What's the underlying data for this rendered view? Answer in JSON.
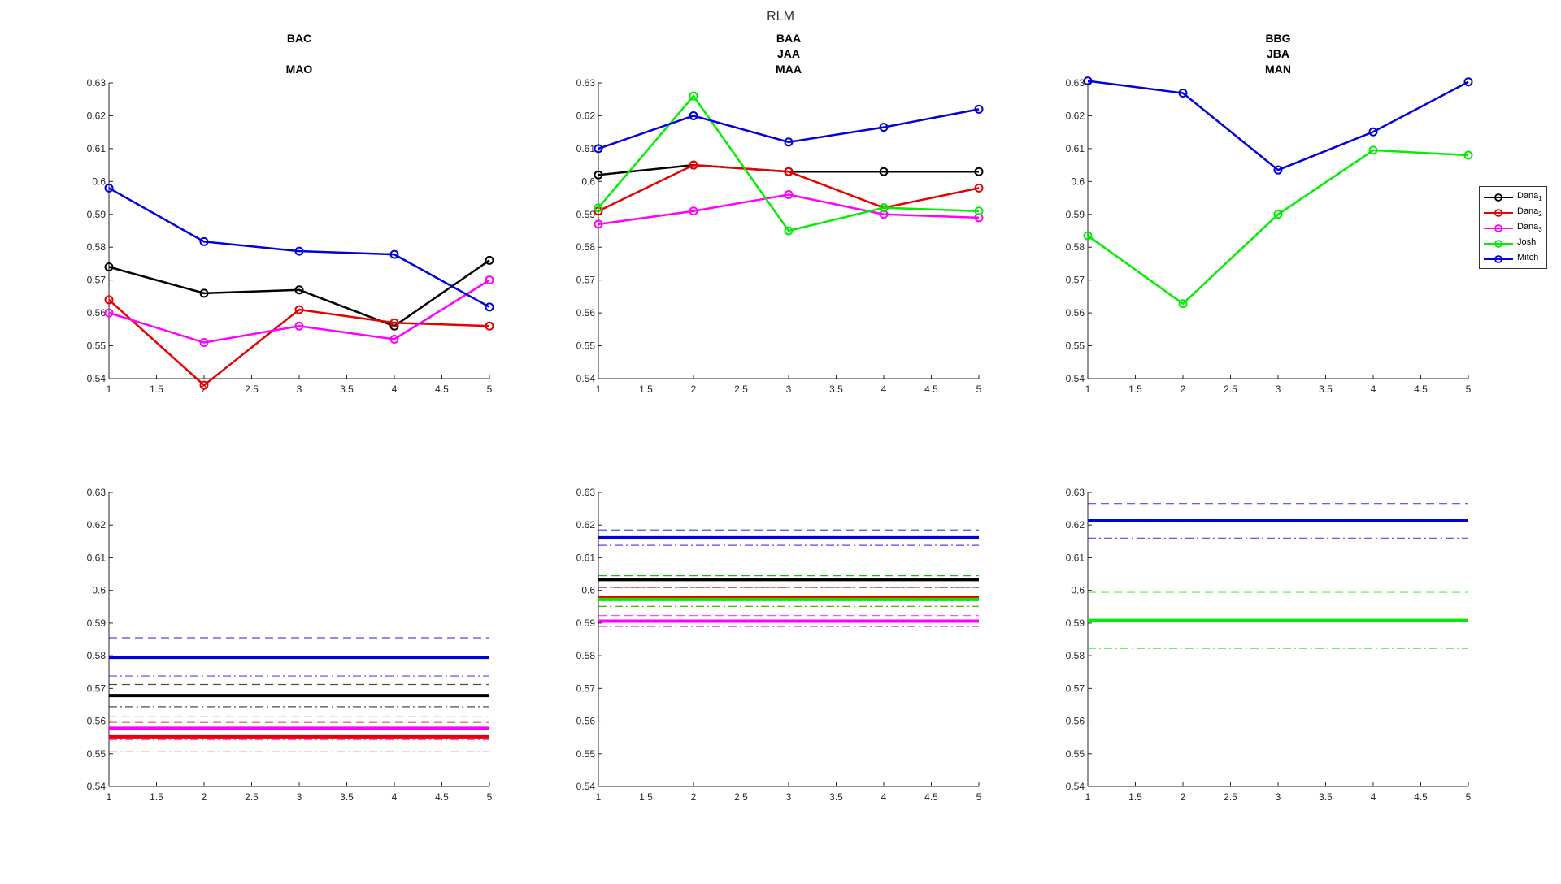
{
  "figure_title": "RLM",
  "colors": {
    "Dana1": "#000000",
    "Dana2": "#e60000",
    "Dana3": "#ff00ff",
    "Josh": "#00ee00",
    "Mitch": "#0000dd"
  },
  "legend": [
    {
      "key": "Dana1",
      "base": "Dana",
      "sub": "1"
    },
    {
      "key": "Dana2",
      "base": "Dana",
      "sub": "2"
    },
    {
      "key": "Dana3",
      "base": "Dana",
      "sub": "3"
    },
    {
      "key": "Josh",
      "base": "Josh",
      "sub": ""
    },
    {
      "key": "Mitch",
      "base": "Mitch",
      "sub": ""
    }
  ],
  "chart_data": [
    {
      "type": "line",
      "title_lines": [
        "BAC",
        "",
        "MAO"
      ],
      "x": [
        1,
        2,
        3,
        4,
        5
      ],
      "xlim": [
        1,
        5
      ],
      "ylim": [
        0.54,
        0.63
      ],
      "xticks": [
        "1",
        "1.5",
        "2",
        "2.5",
        "3",
        "3.5",
        "4",
        "4.5",
        "5"
      ],
      "yticks": [
        "0.54",
        "0.55",
        "0.56",
        "0.57",
        "0.58",
        "0.59",
        "0.6",
        "0.61",
        "0.62",
        "0.63"
      ],
      "series": [
        {
          "key": "Dana1",
          "values": [
            0.574,
            0.566,
            0.567,
            0.556,
            0.576
          ]
        },
        {
          "key": "Dana2",
          "values": [
            0.564,
            0.538,
            0.561,
            0.557,
            0.556
          ]
        },
        {
          "key": "Dana3",
          "values": [
            0.56,
            0.551,
            0.556,
            0.552,
            0.57
          ]
        },
        {
          "key": "Mitch",
          "values": [
            0.598,
            0.5817,
            0.5788,
            0.5778,
            0.5618
          ]
        }
      ]
    },
    {
      "type": "line",
      "title_lines": [
        "BAA",
        "JAA",
        "MAA"
      ],
      "x": [
        1,
        2,
        3,
        4,
        5
      ],
      "xlim": [
        1,
        5
      ],
      "ylim": [
        0.54,
        0.63
      ],
      "xticks": [
        "1",
        "1.5",
        "2",
        "2.5",
        "3",
        "3.5",
        "4",
        "4.5",
        "5"
      ],
      "yticks": [
        "0.54",
        "0.55",
        "0.56",
        "0.57",
        "0.58",
        "0.59",
        "0.6",
        "0.61",
        "0.62",
        "0.63"
      ],
      "series": [
        {
          "key": "Dana1",
          "values": [
            0.602,
            0.605,
            0.603,
            0.603,
            0.603
          ]
        },
        {
          "key": "Dana2",
          "values": [
            0.591,
            0.605,
            0.603,
            0.592,
            0.598
          ]
        },
        {
          "key": "Dana3",
          "values": [
            0.587,
            0.591,
            0.596,
            0.59,
            0.589
          ]
        },
        {
          "key": "Josh",
          "values": [
            0.592,
            0.626,
            0.585,
            0.592,
            0.591
          ]
        },
        {
          "key": "Mitch",
          "values": [
            0.61,
            0.62,
            0.612,
            0.6165,
            0.622
          ]
        }
      ]
    },
    {
      "type": "line",
      "title_lines": [
        "BBG",
        "JBA",
        "MAN"
      ],
      "x": [
        1,
        2,
        3,
        4,
        5
      ],
      "xlim": [
        1,
        5
      ],
      "ylim": [
        0.54,
        0.63
      ],
      "xticks": [
        "1",
        "1.5",
        "2",
        "2.5",
        "3",
        "3.5",
        "4",
        "4.5",
        "5"
      ],
      "yticks": [
        "0.54",
        "0.55",
        "0.56",
        "0.57",
        "0.58",
        "0.59",
        "0.6",
        "0.61",
        "0.62",
        "0.63"
      ],
      "series": [
        {
          "key": "Josh",
          "values": [
            0.5835,
            0.5628,
            0.59,
            0.6095,
            0.608
          ]
        },
        {
          "key": "Mitch",
          "values": [
            0.6306,
            0.6269,
            0.6035,
            0.6151,
            0.6303
          ]
        }
      ]
    },
    {
      "type": "line",
      "title_lines": [],
      "x": [
        1,
        5
      ],
      "xlim": [
        1,
        5
      ],
      "ylim": [
        0.54,
        0.63
      ],
      "xticks": [
        "1",
        "1.5",
        "2",
        "2.5",
        "3",
        "3.5",
        "4",
        "4.5",
        "5"
      ],
      "yticks": [
        "0.54",
        "0.55",
        "0.56",
        "0.57",
        "0.58",
        "0.59",
        "0.6",
        "0.61",
        "0.62",
        "0.63"
      ],
      "series": [
        {
          "key": "Dana1",
          "mean": 0.5678,
          "upper": 0.5712,
          "lower": 0.5644
        },
        {
          "key": "Dana2",
          "mean": 0.5552,
          "upper": 0.5596,
          "lower": 0.5506
        },
        {
          "key": "Dana3",
          "mean": 0.5578,
          "upper": 0.5613,
          "lower": 0.5543
        },
        {
          "key": "Mitch",
          "mean": 0.5795,
          "upper": 0.5855,
          "lower": 0.5738
        }
      ]
    },
    {
      "type": "line",
      "title_lines": [],
      "x": [
        1,
        5
      ],
      "xlim": [
        1,
        5
      ],
      "ylim": [
        0.54,
        0.63
      ],
      "xticks": [
        "1",
        "1.5",
        "2",
        "2.5",
        "3",
        "3.5",
        "4",
        "4.5",
        "5"
      ],
      "yticks": [
        "0.54",
        "0.55",
        "0.56",
        "0.57",
        "0.58",
        "0.59",
        "0.6",
        "0.61",
        "0.62",
        "0.63"
      ],
      "series": [
        {
          "key": "Dana1",
          "mean": 0.6033,
          "upper": 0.6045,
          "lower": 0.6009
        },
        {
          "key": "Dana2",
          "mean": 0.5978,
          "upper": 0.6009,
          "lower": 0.5951
        },
        {
          "key": "Dana3",
          "mean": 0.5906,
          "upper": 0.5923,
          "lower": 0.5889
        },
        {
          "key": "Josh",
          "mean": 0.5972,
          "upper": 0.6045,
          "lower": 0.5951
        },
        {
          "key": "Mitch",
          "mean": 0.6161,
          "upper": 0.6185,
          "lower": 0.6138
        }
      ]
    },
    {
      "type": "line",
      "title_lines": [],
      "x": [
        1,
        5
      ],
      "xlim": [
        1,
        5
      ],
      "ylim": [
        0.54,
        0.63
      ],
      "xticks": [
        "1",
        "1.5",
        "2",
        "2.5",
        "3",
        "3.5",
        "4",
        "4.5",
        "5"
      ],
      "yticks": [
        "0.54",
        "0.55",
        "0.56",
        "0.57",
        "0.58",
        "0.59",
        "0.6",
        "0.61",
        "0.62",
        "0.63"
      ],
      "series": [
        {
          "key": "Josh",
          "mean": 0.5908,
          "upper": 0.5994,
          "lower": 0.5822
        },
        {
          "key": "Mitch",
          "mean": 0.6213,
          "upper": 0.6266,
          "lower": 0.616
        }
      ]
    }
  ]
}
